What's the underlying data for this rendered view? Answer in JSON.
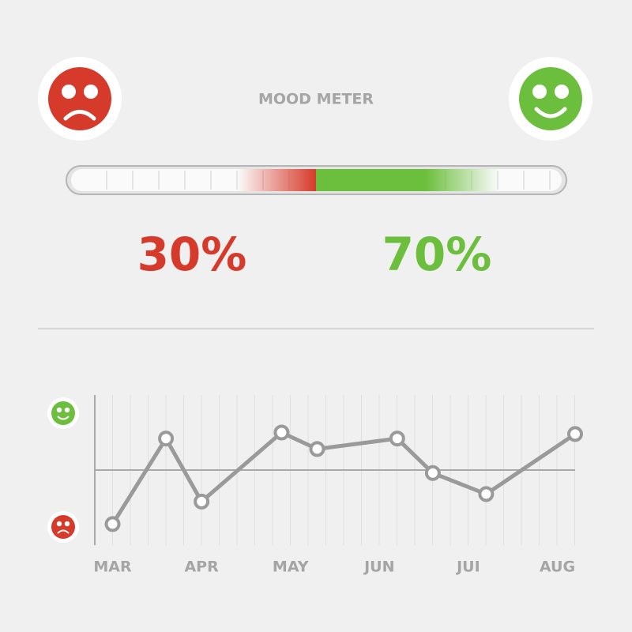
{
  "chart_data": [
    {
      "type": "meter",
      "title": "MOOD METER",
      "categories": [
        "sad",
        "happy"
      ],
      "values": [
        30,
        70
      ],
      "value_labels": [
        "30%",
        "70%"
      ],
      "colors": [
        "#d63a2a",
        "#6cbf3c"
      ]
    },
    {
      "type": "line",
      "x": [
        0,
        0.6,
        1.0,
        1.9,
        2.3,
        3.2,
        3.6,
        4.2,
        5.2
      ],
      "values": [
        14,
        71,
        29,
        75,
        64,
        71,
        48,
        34,
        74
      ],
      "color": "#9a9a9a",
      "xlim": [
        -0.2,
        5.2
      ],
      "ylim": [
        0,
        100
      ],
      "xticks": [
        {
          "value": 0,
          "label": "MAR"
        },
        {
          "value": 1,
          "label": "APR"
        },
        {
          "value": 2,
          "label": "MAY"
        },
        {
          "value": 3,
          "label": "JUN"
        },
        {
          "value": 4,
          "label": "JUI"
        },
        {
          "value": 5,
          "label": "AUG"
        }
      ],
      "reference_line": 50,
      "grid": true
    }
  ]
}
